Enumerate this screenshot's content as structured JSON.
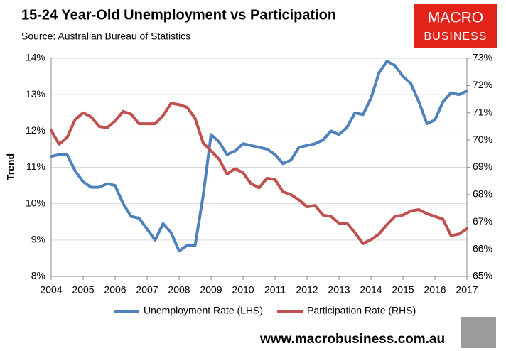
{
  "chart_data": {
    "type": "line",
    "title": "15-24 Year-Old Unemployment vs Participation",
    "subtitle": "Source: Australian Bureau of Statistics",
    "y_label": "Trend",
    "x": [
      2004,
      2004.25,
      2004.5,
      2004.75,
      2005,
      2005.25,
      2005.5,
      2005.75,
      2006,
      2006.25,
      2006.5,
      2006.75,
      2007,
      2007.25,
      2007.5,
      2007.75,
      2008,
      2008.25,
      2008.5,
      2008.75,
      2009,
      2009.25,
      2009.5,
      2009.75,
      2010,
      2010.25,
      2010.5,
      2010.75,
      2011,
      2011.25,
      2011.5,
      2011.75,
      2012,
      2012.25,
      2012.5,
      2012.75,
      2013,
      2013.25,
      2013.5,
      2013.75,
      2014,
      2014.25,
      2014.5,
      2014.75,
      2015,
      2015.25,
      2015.5,
      2015.75,
      2016,
      2016.25,
      2016.5,
      2016.75,
      2017
    ],
    "series": [
      {
        "name": "Unemployment Rate (LHS)",
        "color": "#4f81bd",
        "values": [
          11.3,
          11.35,
          11.35,
          10.9,
          10.6,
          10.45,
          10.45,
          10.55,
          10.5,
          10.0,
          9.65,
          9.6,
          9.3,
          9.0,
          9.45,
          9.2,
          8.7,
          8.85,
          8.85,
          10.2,
          11.9,
          11.7,
          11.35,
          11.45,
          11.65,
          11.6,
          11.55,
          11.5,
          11.35,
          11.1,
          11.2,
          11.55,
          11.6,
          11.65,
          11.75,
          12.0,
          11.9,
          12.1,
          12.5,
          12.45,
          12.9,
          13.6,
          13.92,
          13.8,
          13.5,
          13.3,
          12.8,
          12.2,
          12.3,
          12.8,
          13.05,
          13.0,
          13.1
        ]
      },
      {
        "name": "Participation Rate (RHS)",
        "color": "#c0504d",
        "axis": "y2",
        "values": [
          70.35,
          69.85,
          70.1,
          70.75,
          71.0,
          70.85,
          70.5,
          70.45,
          70.7,
          71.05,
          70.95,
          70.6,
          70.6,
          70.6,
          70.9,
          71.35,
          71.3,
          71.2,
          70.8,
          69.9,
          69.6,
          69.3,
          68.75,
          68.95,
          68.8,
          68.4,
          68.25,
          68.6,
          68.55,
          68.1,
          68.0,
          67.8,
          67.55,
          67.6,
          67.25,
          67.2,
          66.95,
          66.95,
          66.6,
          66.2,
          66.35,
          66.55,
          66.9,
          67.2,
          67.25,
          67.4,
          67.45,
          67.3,
          67.2,
          67.1,
          66.5,
          66.55,
          66.75
        ]
      }
    ],
    "xlim": [
      2004,
      2017
    ],
    "xticks": [
      2004,
      2005,
      2006,
      2007,
      2008,
      2009,
      2010,
      2011,
      2012,
      2013,
      2014,
      2015,
      2016,
      2017
    ],
    "ylim": [
      8,
      14
    ],
    "yticks": [
      {
        "value": 8,
        "label": "8%"
      },
      {
        "value": 9,
        "label": "9%"
      },
      {
        "value": 10,
        "label": "10%"
      },
      {
        "value": 11,
        "label": "11%"
      },
      {
        "value": 12,
        "label": "12%"
      },
      {
        "value": 13,
        "label": "13%"
      },
      {
        "value": 14,
        "label": "14%"
      }
    ],
    "y2lim": [
      65,
      73
    ],
    "y2ticks": [
      {
        "value": 65,
        "label": "65%"
      },
      {
        "value": 66,
        "label": "66%"
      },
      {
        "value": 67,
        "label": "67%"
      },
      {
        "value": 68,
        "label": "68%"
      },
      {
        "value": 69,
        "label": "69%"
      },
      {
        "value": 70,
        "label": "70%"
      },
      {
        "value": 71,
        "label": "71%"
      },
      {
        "value": 72,
        "label": "72%"
      },
      {
        "value": 73,
        "label": "73%"
      }
    ],
    "grid": true,
    "legend": "bottom"
  },
  "logo": {
    "line1": "MACRO",
    "line2": "BUSINESS"
  },
  "footer": "www.macrobusiness.com.au"
}
